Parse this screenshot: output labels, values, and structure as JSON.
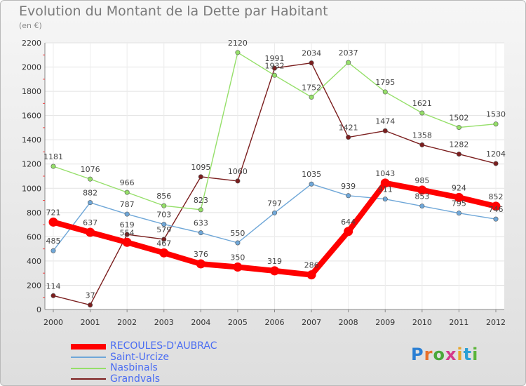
{
  "chart_data": {
    "type": "line",
    "title": "Evolution du Montant de la Dette par Habitant",
    "subtitle": "(en €)",
    "x": [
      "2000",
      "2001",
      "2002",
      "2003",
      "2004",
      "2005",
      "2006",
      "2007",
      "2008",
      "2009",
      "2010",
      "2011",
      "2012"
    ],
    "ylim": [
      0,
      2200
    ],
    "yticks": [
      0,
      200,
      400,
      600,
      800,
      1000,
      1200,
      1400,
      1600,
      1800,
      2000,
      2200
    ],
    "grid": true,
    "legend_position": "bottom-left",
    "series": [
      {
        "name": "RECOULES-D'AUBRAC",
        "color": "#ff0000",
        "values": [
          721,
          637,
          554,
          467,
          376,
          350,
          319,
          286,
          644,
          1043,
          985,
          924,
          852
        ]
      },
      {
        "name": "Saint-Urcize",
        "color": "#6fa7d8",
        "values": [
          485,
          882,
          787,
          703,
          633,
          550,
          797,
          1035,
          939,
          911,
          853,
          795,
          746
        ]
      },
      {
        "name": "Nasbinals",
        "color": "#95df69",
        "values": [
          1181,
          1076,
          966,
          856,
          823,
          2120,
          1932,
          1752,
          2037,
          1795,
          1621,
          1502,
          1530
        ]
      },
      {
        "name": "Grandvals",
        "color": "#7b1e1e",
        "values": [
          114,
          37,
          619,
          579,
          1095,
          1060,
          1991,
          2034,
          1421,
          1474,
          1358,
          1282,
          1204
        ]
      }
    ]
  },
  "logo": {
    "letters": [
      "P",
      "r",
      "o",
      "x",
      "i",
      "t",
      "i"
    ],
    "colors": [
      "#2a7fd4",
      "#e8702a",
      "#4aa83a",
      "#d43a8c",
      "#e8a72a",
      "#2a9fd4",
      "#5bb53a"
    ]
  }
}
